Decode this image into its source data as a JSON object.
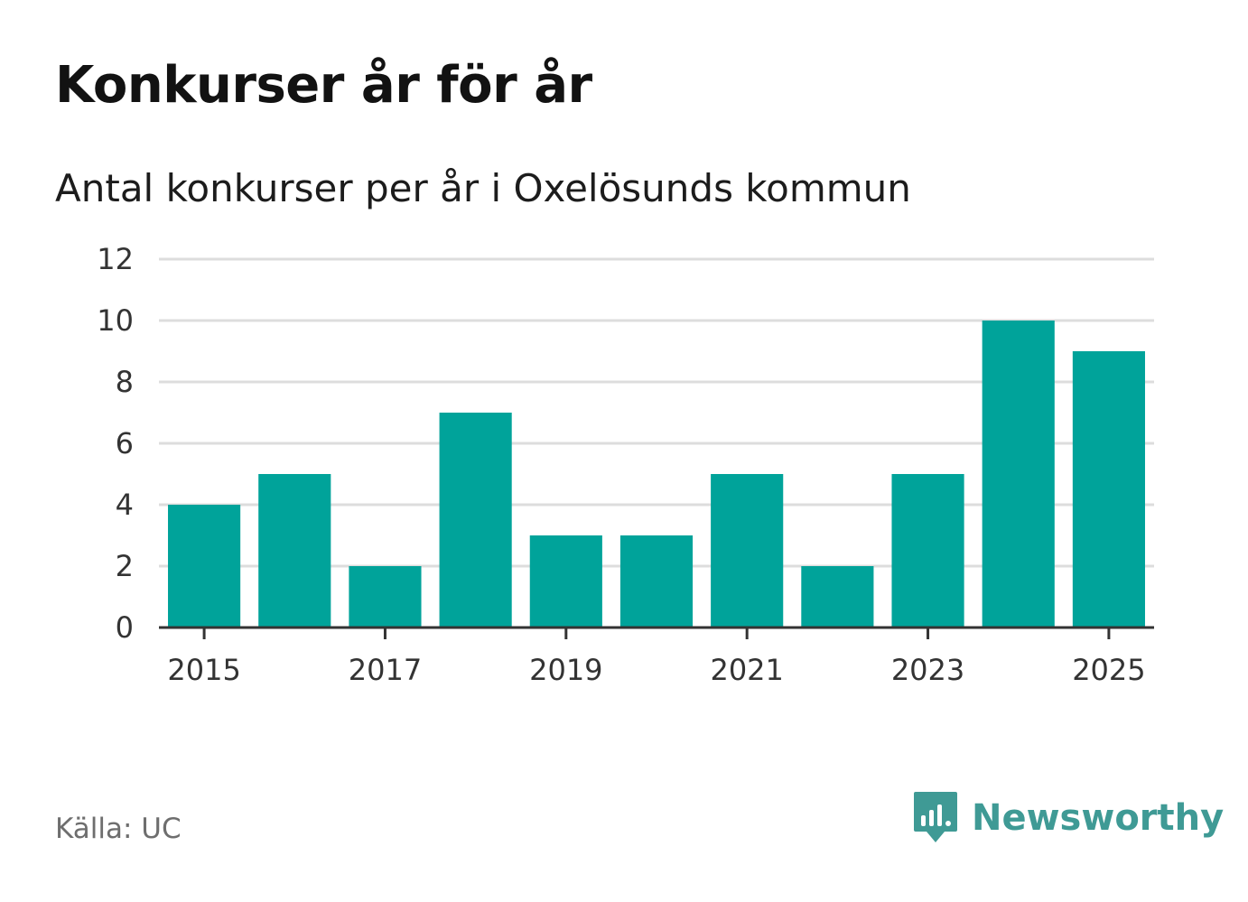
{
  "title": "Konkurser år för år",
  "subtitle": "Antal konkurser per år i Oxelösunds kommun",
  "source": "Källa: UC",
  "brand": "Newsworthy",
  "colors": {
    "bar": "#00a39a",
    "grid": "#dddddd",
    "axis": "#333333",
    "brand": "#3f9a95"
  },
  "chart_data": {
    "type": "bar",
    "title": "Konkurser år för år",
    "subtitle": "Antal konkurser per år i Oxelösunds kommun",
    "xlabel": "",
    "ylabel": "",
    "categories": [
      "2015",
      "2016",
      "2017",
      "2018",
      "2019",
      "2020",
      "2021",
      "2022",
      "2023",
      "2024",
      "2025"
    ],
    "values": [
      4,
      5,
      2,
      7,
      3,
      3,
      5,
      2,
      5,
      10,
      9
    ],
    "x_tick_labels": [
      "2015",
      "2017",
      "2019",
      "2021",
      "2023",
      "2025"
    ],
    "y_ticks": [
      0,
      2,
      4,
      6,
      8,
      10,
      12
    ],
    "ylim": [
      0,
      12
    ],
    "grid": true,
    "legend": "none"
  }
}
